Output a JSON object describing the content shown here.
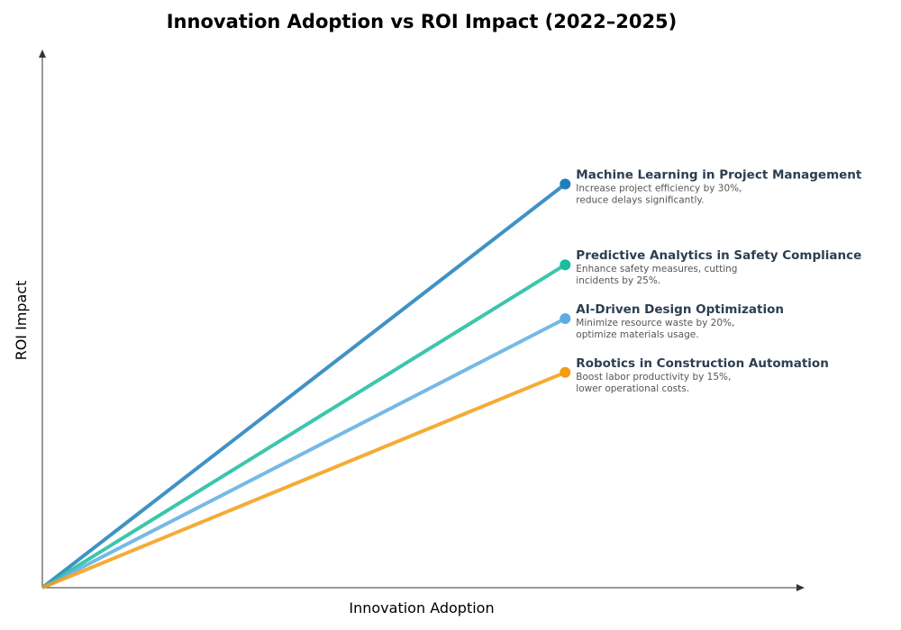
{
  "chart_data": {
    "type": "line",
    "title": "Innovation Adoption vs ROI Impact (2022–2025)",
    "xlabel": "Innovation Adoption",
    "ylabel": "ROI Impact",
    "xlim": [
      0,
      1
    ],
    "ylim": [
      0,
      1
    ],
    "grid": false,
    "ticks": false,
    "series": [
      {
        "name": "Machine Learning in Project Management",
        "desc": [
          "Increase project efficiency by 30%,",
          "reduce delays significantly."
        ],
        "color": "#1f7fba",
        "x": [
          0,
          0.7
        ],
        "y": [
          0,
          0.75
        ]
      },
      {
        "name": "Predictive Analytics in Safety Compliance",
        "desc": [
          "Enhance safety measures, cutting",
          "incidents by 25%."
        ],
        "color": "#1abc9c",
        "x": [
          0,
          0.7
        ],
        "y": [
          0,
          0.6
        ]
      },
      {
        "name": "AI-Driven Design Optimization",
        "desc": [
          "Minimize resource waste by 20%,",
          "optimize materials usage."
        ],
        "color": "#5dade2",
        "x": [
          0,
          0.7
        ],
        "y": [
          0,
          0.5
        ]
      },
      {
        "name": "Robotics in Construction Automation",
        "desc": [
          "Boost labor productivity by 15%,",
          "lower operational costs."
        ],
        "color": "#f39c12",
        "x": [
          0,
          0.7
        ],
        "y": [
          0,
          0.4
        ]
      }
    ]
  }
}
